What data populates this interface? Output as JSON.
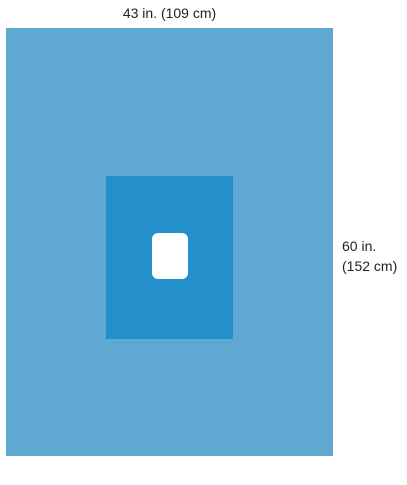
{
  "dimensions": {
    "width_label": "43 in. (109 cm)",
    "height_label_line1": "60 in.",
    "height_label_line2": "(152 cm)"
  },
  "colors": {
    "drape": "#5fa8d2",
    "reinforcement": "#2490cb",
    "fenestration": "#ffffff",
    "text": "#231f20"
  }
}
